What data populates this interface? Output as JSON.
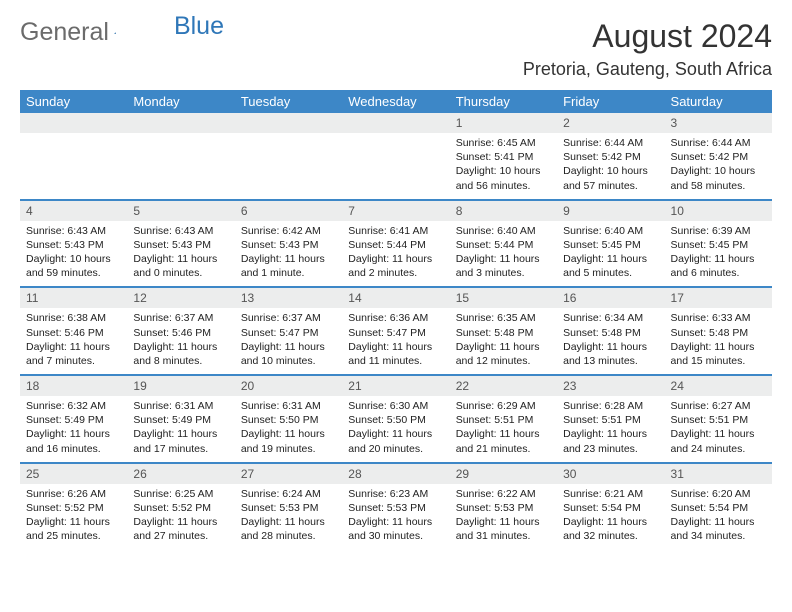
{
  "brand": {
    "word1": "General",
    "word2": "Blue"
  },
  "title": "August 2024",
  "location": "Pretoria, Gauteng, South Africa",
  "colors": {
    "header_bg": "#3d87c7",
    "header_text": "#ffffff",
    "daynum_bg": "#eceded",
    "row_border": "#3d87c7",
    "logo_gray": "#6b6b6b",
    "logo_blue": "#2f77b8"
  },
  "weekdays": [
    "Sunday",
    "Monday",
    "Tuesday",
    "Wednesday",
    "Thursday",
    "Friday",
    "Saturday"
  ],
  "weeks": [
    [
      null,
      null,
      null,
      null,
      {
        "n": "1",
        "sr": "6:45 AM",
        "ss": "5:41 PM",
        "dl": "10 hours and 56 minutes."
      },
      {
        "n": "2",
        "sr": "6:44 AM",
        "ss": "5:42 PM",
        "dl": "10 hours and 57 minutes."
      },
      {
        "n": "3",
        "sr": "6:44 AM",
        "ss": "5:42 PM",
        "dl": "10 hours and 58 minutes."
      }
    ],
    [
      {
        "n": "4",
        "sr": "6:43 AM",
        "ss": "5:43 PM",
        "dl": "10 hours and 59 minutes."
      },
      {
        "n": "5",
        "sr": "6:43 AM",
        "ss": "5:43 PM",
        "dl": "11 hours and 0 minutes."
      },
      {
        "n": "6",
        "sr": "6:42 AM",
        "ss": "5:43 PM",
        "dl": "11 hours and 1 minute."
      },
      {
        "n": "7",
        "sr": "6:41 AM",
        "ss": "5:44 PM",
        "dl": "11 hours and 2 minutes."
      },
      {
        "n": "8",
        "sr": "6:40 AM",
        "ss": "5:44 PM",
        "dl": "11 hours and 3 minutes."
      },
      {
        "n": "9",
        "sr": "6:40 AM",
        "ss": "5:45 PM",
        "dl": "11 hours and 5 minutes."
      },
      {
        "n": "10",
        "sr": "6:39 AM",
        "ss": "5:45 PM",
        "dl": "11 hours and 6 minutes."
      }
    ],
    [
      {
        "n": "11",
        "sr": "6:38 AM",
        "ss": "5:46 PM",
        "dl": "11 hours and 7 minutes."
      },
      {
        "n": "12",
        "sr": "6:37 AM",
        "ss": "5:46 PM",
        "dl": "11 hours and 8 minutes."
      },
      {
        "n": "13",
        "sr": "6:37 AM",
        "ss": "5:47 PM",
        "dl": "11 hours and 10 minutes."
      },
      {
        "n": "14",
        "sr": "6:36 AM",
        "ss": "5:47 PM",
        "dl": "11 hours and 11 minutes."
      },
      {
        "n": "15",
        "sr": "6:35 AM",
        "ss": "5:48 PM",
        "dl": "11 hours and 12 minutes."
      },
      {
        "n": "16",
        "sr": "6:34 AM",
        "ss": "5:48 PM",
        "dl": "11 hours and 13 minutes."
      },
      {
        "n": "17",
        "sr": "6:33 AM",
        "ss": "5:48 PM",
        "dl": "11 hours and 15 minutes."
      }
    ],
    [
      {
        "n": "18",
        "sr": "6:32 AM",
        "ss": "5:49 PM",
        "dl": "11 hours and 16 minutes."
      },
      {
        "n": "19",
        "sr": "6:31 AM",
        "ss": "5:49 PM",
        "dl": "11 hours and 17 minutes."
      },
      {
        "n": "20",
        "sr": "6:31 AM",
        "ss": "5:50 PM",
        "dl": "11 hours and 19 minutes."
      },
      {
        "n": "21",
        "sr": "6:30 AM",
        "ss": "5:50 PM",
        "dl": "11 hours and 20 minutes."
      },
      {
        "n": "22",
        "sr": "6:29 AM",
        "ss": "5:51 PM",
        "dl": "11 hours and 21 minutes."
      },
      {
        "n": "23",
        "sr": "6:28 AM",
        "ss": "5:51 PM",
        "dl": "11 hours and 23 minutes."
      },
      {
        "n": "24",
        "sr": "6:27 AM",
        "ss": "5:51 PM",
        "dl": "11 hours and 24 minutes."
      }
    ],
    [
      {
        "n": "25",
        "sr": "6:26 AM",
        "ss": "5:52 PM",
        "dl": "11 hours and 25 minutes."
      },
      {
        "n": "26",
        "sr": "6:25 AM",
        "ss": "5:52 PM",
        "dl": "11 hours and 27 minutes."
      },
      {
        "n": "27",
        "sr": "6:24 AM",
        "ss": "5:53 PM",
        "dl": "11 hours and 28 minutes."
      },
      {
        "n": "28",
        "sr": "6:23 AM",
        "ss": "5:53 PM",
        "dl": "11 hours and 30 minutes."
      },
      {
        "n": "29",
        "sr": "6:22 AM",
        "ss": "5:53 PM",
        "dl": "11 hours and 31 minutes."
      },
      {
        "n": "30",
        "sr": "6:21 AM",
        "ss": "5:54 PM",
        "dl": "11 hours and 32 minutes."
      },
      {
        "n": "31",
        "sr": "6:20 AM",
        "ss": "5:54 PM",
        "dl": "11 hours and 34 minutes."
      }
    ]
  ],
  "labels": {
    "sunrise": "Sunrise:",
    "sunset": "Sunset:",
    "daylight": "Daylight:"
  }
}
